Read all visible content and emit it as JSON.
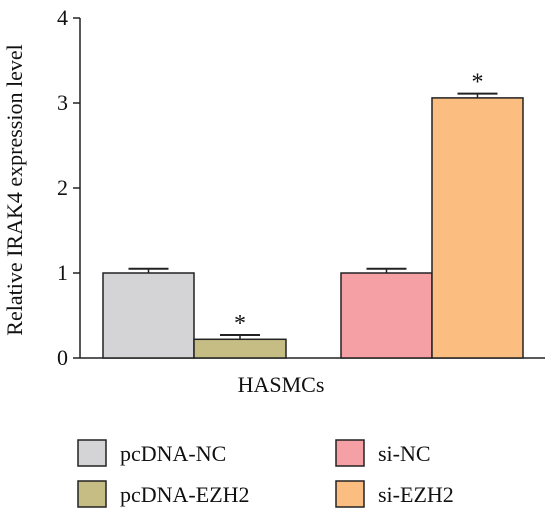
{
  "chart_data": {
    "type": "bar",
    "xlabel": "HASMCs",
    "ylabel": "Relative IRAK4 expression level",
    "ylim": [
      0,
      4
    ],
    "yticks": [
      0,
      1,
      2,
      3,
      4
    ],
    "grid": false,
    "legend_position": "bottom",
    "groups": [
      {
        "series": [
          "pcDNA-NC",
          "pcDNA-EZH2"
        ]
      },
      {
        "series": [
          "si-NC",
          "si-EZH2"
        ]
      }
    ],
    "series": [
      {
        "name": "pcDNA-NC",
        "value": 1.0,
        "error": 0.05,
        "significance": "",
        "color": "#d4d4d6"
      },
      {
        "name": "pcDNA-EZH2",
        "value": 0.22,
        "error": 0.05,
        "significance": "*",
        "color": "#c5bd84"
      },
      {
        "name": "si-NC",
        "value": 1.0,
        "error": 0.05,
        "significance": "",
        "color": "#f5a0a4"
      },
      {
        "name": "si-EZH2",
        "value": 3.06,
        "error": 0.05,
        "significance": "*",
        "color": "#fcbe80"
      }
    ]
  }
}
